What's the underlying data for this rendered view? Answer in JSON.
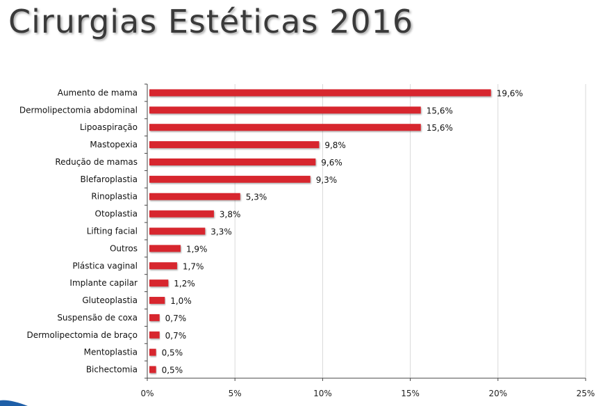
{
  "title": "Cirurgias Estéticas 2016",
  "chart_data": {
    "type": "bar",
    "orientation": "horizontal",
    "title": "Cirurgias Estéticas 2016",
    "xlabel": "",
    "ylabel": "",
    "xlim": [
      0,
      25
    ],
    "xticks": [
      "0%",
      "5%",
      "10%",
      "15%",
      "20%",
      "25%"
    ],
    "grid": "vertical",
    "legend": "none",
    "bar_color": "#d7262e",
    "categories": [
      "Aumento de mama",
      "Dermolipectomia abdominal",
      "Lipoaspiração",
      "Mastopexia",
      "Redução de mamas",
      "Blefaroplastia",
      "Rinoplastia",
      "Otoplastia",
      "Lifting facial",
      "Outros",
      "Plástica vaginal",
      "Implante capilar",
      "Gluteoplastia",
      "Suspensão de coxa",
      "Dermolipectomia de braço",
      "Mentoplastia",
      "Bichectomia"
    ],
    "values": [
      19.6,
      15.6,
      15.6,
      9.8,
      9.6,
      9.3,
      5.3,
      3.8,
      3.3,
      1.9,
      1.7,
      1.2,
      1.0,
      0.7,
      0.7,
      0.5,
      0.5
    ],
    "data_labels": [
      "19,6%",
      "15,6%",
      "15,6%",
      "9,8%",
      "9,6%",
      "9,3%",
      "5,3%",
      "3,8%",
      "3,3%",
      "1,9%",
      "1,7%",
      "1,2%",
      "1,0%",
      "0,7%",
      "0,7%",
      "0,5%",
      "0,5%"
    ]
  }
}
